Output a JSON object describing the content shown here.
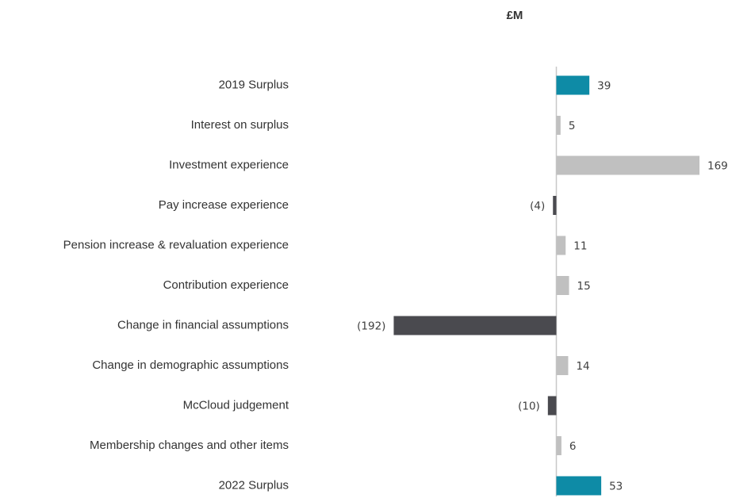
{
  "chart_data": {
    "type": "bar",
    "orientation": "horizontal",
    "title": "£M",
    "categories": [
      "2019 Surplus",
      "Interest on surplus",
      "Investment experience",
      "Pay increase experience",
      "Pension increase & revaluation experience",
      "Contribution experience",
      "Change in financial assumptions",
      "Change in demographic assumptions",
      "McCloud judgement",
      "Membership changes and other items",
      "2022 Surplus"
    ],
    "values": [
      39,
      5,
      169,
      -4,
      11,
      15,
      -192,
      14,
      -10,
      6,
      53
    ],
    "value_labels": [
      "39",
      "5",
      "169",
      "(4)",
      "11",
      "15",
      "(192)",
      "14",
      "(10)",
      "6",
      "53"
    ],
    "colors": [
      "#0e8ba6",
      "#c0c0c0",
      "#c0c0c0",
      "#4a4a4f",
      "#c0c0c0",
      "#c0c0c0",
      "#4a4a4f",
      "#c0c0c0",
      "#4a4a4f",
      "#c0c0c0",
      "#0e8ba6"
    ]
  }
}
